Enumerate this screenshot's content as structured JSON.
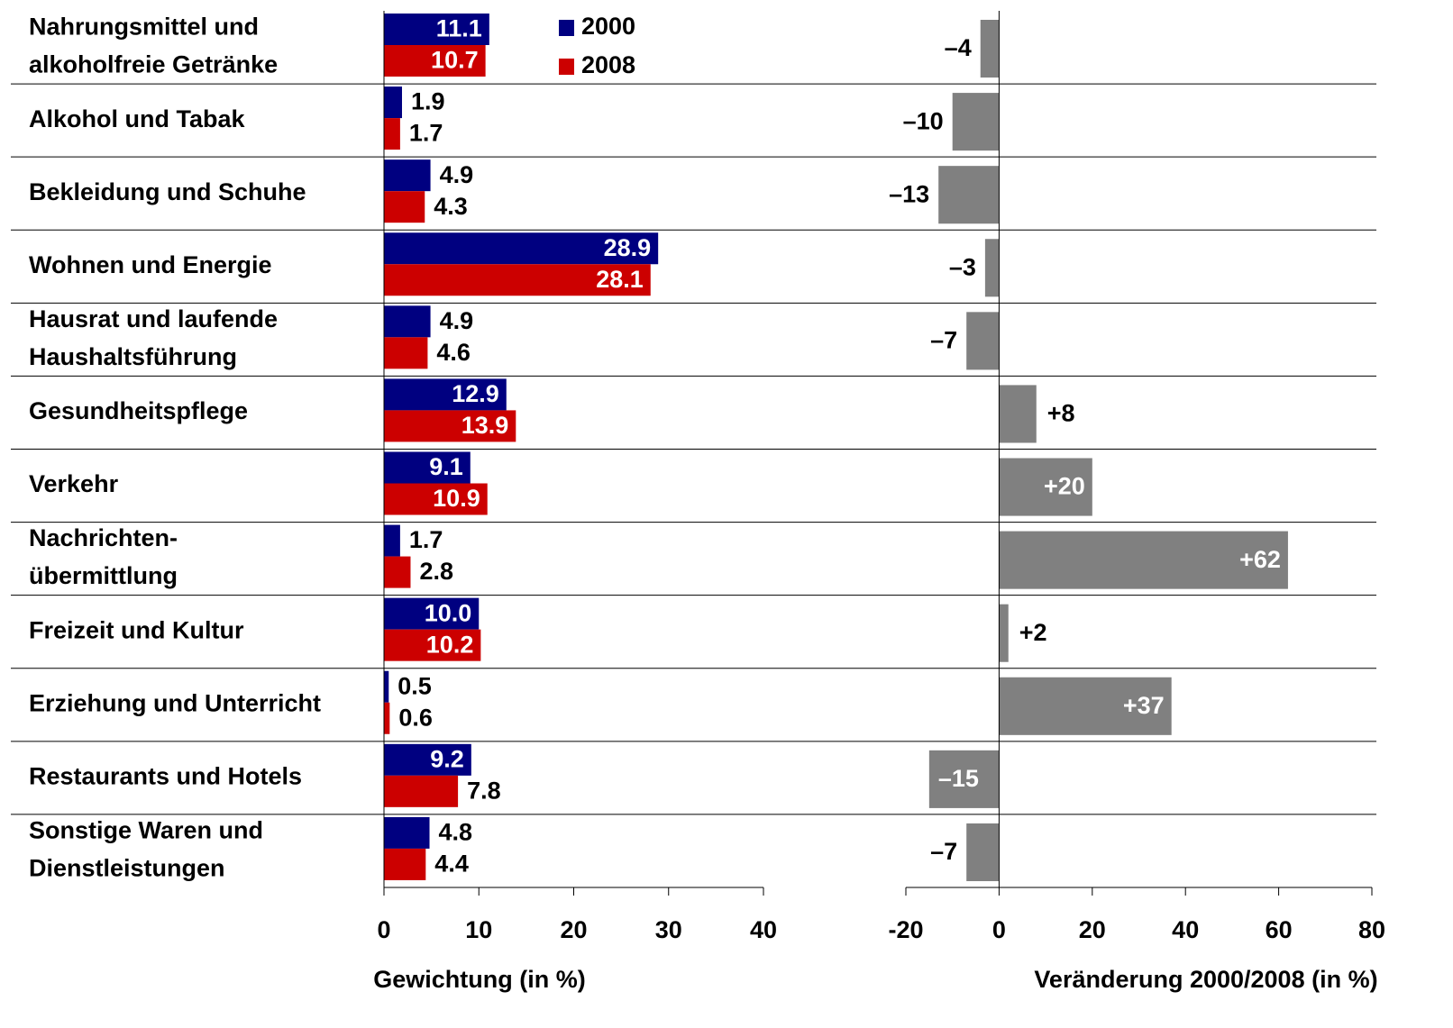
{
  "chart_data": [
    {
      "type": "bar",
      "categories": [
        "Nahrungsmittel und\nalkoholfreie Getränke",
        "Alkohol und Tabak",
        "Bekleidung und Schuhe",
        "Wohnen und Energie",
        "Hausrat und laufende\nHaushaltsführung",
        "Gesundheitspflege",
        "Verkehr",
        "Nachrichten-\nübermittlung",
        "Freizeit und Kultur",
        "Erziehung und Unterricht",
        "Restaurants und Hotels",
        "Sonstige Waren und\nDienstleistungen"
      ],
      "series": [
        {
          "name": "2000",
          "color": "#000080",
          "values": [
            11.1,
            1.9,
            4.9,
            28.9,
            4.9,
            12.9,
            9.1,
            1.7,
            10.0,
            0.5,
            9.2,
            4.8
          ],
          "value_labels": [
            "11.1",
            "1.9",
            "4.9",
            "28.9",
            "4.9",
            "12.9",
            "9.1",
            "1.7",
            "10.0",
            "0.5",
            "9.2",
            "4.8"
          ]
        },
        {
          "name": "2008",
          "color": "#cc0000",
          "values": [
            10.7,
            1.7,
            4.3,
            28.1,
            4.6,
            13.9,
            10.9,
            2.8,
            10.2,
            0.6,
            7.8,
            4.4
          ],
          "value_labels": [
            "10.7",
            "1.7",
            "4.3",
            "28.1",
            "4.6",
            "13.9",
            "10.9",
            "2.8",
            "10.2",
            "0.6",
            "7.8",
            "4.4"
          ]
        }
      ],
      "xlabel": "Gewichtung (in %)",
      "xlim": [
        0,
        40
      ],
      "xticks": [
        0,
        10,
        20,
        30,
        40
      ]
    },
    {
      "type": "bar",
      "values": [
        -4,
        -10,
        -13,
        -3,
        -7,
        8,
        20,
        62,
        2,
        37,
        -15,
        -7
      ],
      "value_labels": [
        "–4",
        "–10",
        "–13",
        "–3",
        "–7",
        "+8",
        "+20",
        "+62",
        "+2",
        "+37",
        "–15",
        "–7"
      ],
      "color": "#808080",
      "xlabel": "Veränderung 2000/2008 (in %)",
      "xlim": [
        -20,
        80
      ],
      "xticks": [
        -20,
        0,
        20,
        40,
        60,
        80
      ]
    }
  ]
}
